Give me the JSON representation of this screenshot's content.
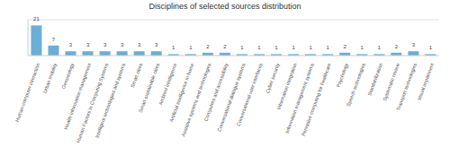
{
  "chart_data": {
    "type": "bar",
    "title": "Disciplines of selected sources distribution",
    "categories": [
      "Human-computer interaction",
      "Urban mobility",
      "Gerontology",
      "Health information management",
      "Human Factors in Computing Systems",
      "Intelligent technologies and systems",
      "Smart cities",
      "Smart sustainable cities",
      "Ambient intelligence",
      "Artificial intelligence in home",
      "Assistive systems and technologies",
      "Computers and accessibility",
      "Conversational dialogue systems",
      "Conversational user interfaces",
      "Cyber security",
      "Information integration",
      "Information management systems",
      "Pervasive computing for healthcare",
      "Psychology",
      "Speech technologies",
      "Standardization",
      "Systematic review",
      "Transport technologies",
      "Visual impairment"
    ],
    "values": [
      21,
      7,
      3,
      3,
      3,
      3,
      3,
      3,
      1,
      1,
      2,
      2,
      1,
      1,
      1,
      1,
      1,
      1,
      2,
      1,
      1,
      2,
      3,
      1
    ],
    "color": "#6baed6",
    "ylim": [
      0,
      25
    ],
    "yticks": [],
    "grid": false,
    "data_labels": true,
    "tick_labels": "x"
  }
}
